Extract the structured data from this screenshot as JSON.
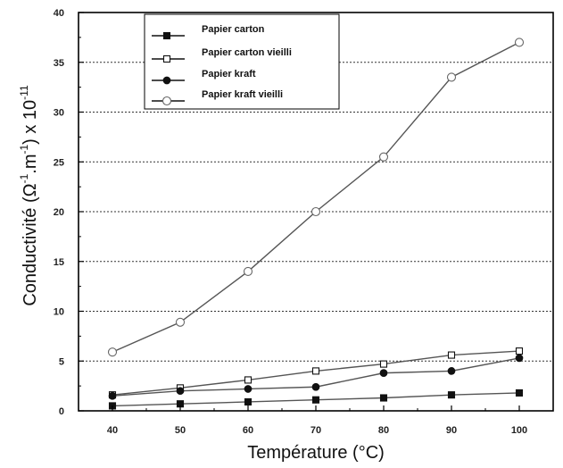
{
  "chart_data": {
    "type": "line",
    "title": "",
    "xlabel": "Température (°C)",
    "ylabel_main": "Conductivité (Ω",
    "ylabel_sup1": "-1",
    "ylabel_mid": ".m",
    "ylabel_sup2": "-1",
    "ylabel_end": ") x 10",
    "ylabel_sup3": "-11",
    "x": [
      40,
      50,
      60,
      70,
      80,
      90,
      100
    ],
    "xlim": [
      35,
      105
    ],
    "ylim": [
      0,
      40
    ],
    "xticks": [
      "40",
      "50",
      "60",
      "70",
      "80",
      "90",
      "100"
    ],
    "yticks": [
      "0",
      "5",
      "10",
      "15",
      "20",
      "25",
      "30",
      "35",
      "40"
    ],
    "legend_position": "top-left",
    "grid": "horizontal-dashed",
    "series": [
      {
        "name": "Papier carton",
        "marker": "square-filled",
        "values": [
          0.5,
          0.7,
          0.9,
          1.1,
          1.3,
          1.6,
          1.8
        ]
      },
      {
        "name": "Papier carton vieilli",
        "marker": "square-open",
        "values": [
          1.6,
          2.3,
          3.1,
          4.0,
          4.7,
          5.6,
          6.0
        ]
      },
      {
        "name": "Papier kraft",
        "marker": "circle-filled",
        "values": [
          1.5,
          2.0,
          2.2,
          2.4,
          3.8,
          4.0,
          5.3
        ]
      },
      {
        "name": "Papier kraft vieilli",
        "marker": "circle-open",
        "values": [
          5.9,
          8.9,
          14.0,
          20.0,
          25.5,
          33.5,
          37.0
        ]
      }
    ]
  }
}
